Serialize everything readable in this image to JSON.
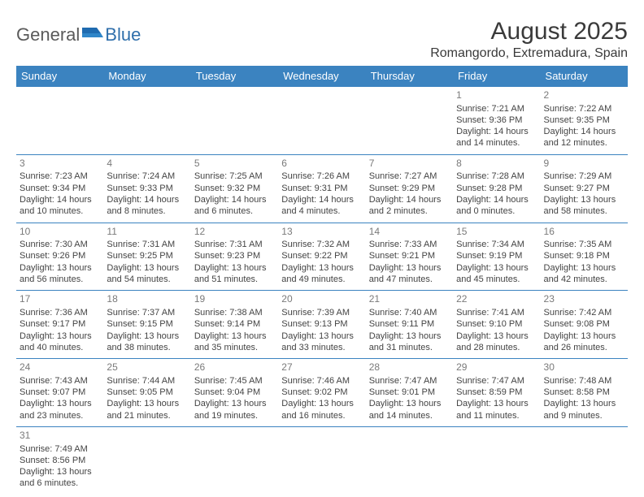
{
  "brand": {
    "part1": "General",
    "part2": "Blue"
  },
  "title": "August 2025",
  "location": "Romangordo, Extremadura, Spain",
  "colors": {
    "header_bg": "#3b83c0",
    "header_text": "#ffffff",
    "border": "#3b83c0",
    "daynum": "#7a7a7a",
    "text": "#444444",
    "title": "#3a3a3a"
  },
  "day_headers": [
    "Sunday",
    "Monday",
    "Tuesday",
    "Wednesday",
    "Thursday",
    "Friday",
    "Saturday"
  ],
  "weeks": [
    [
      null,
      null,
      null,
      null,
      null,
      {
        "n": "1",
        "sr": "Sunrise: 7:21 AM",
        "ss": "Sunset: 9:36 PM",
        "d1": "Daylight: 14 hours",
        "d2": "and 14 minutes."
      },
      {
        "n": "2",
        "sr": "Sunrise: 7:22 AM",
        "ss": "Sunset: 9:35 PM",
        "d1": "Daylight: 14 hours",
        "d2": "and 12 minutes."
      }
    ],
    [
      {
        "n": "3",
        "sr": "Sunrise: 7:23 AM",
        "ss": "Sunset: 9:34 PM",
        "d1": "Daylight: 14 hours",
        "d2": "and 10 minutes."
      },
      {
        "n": "4",
        "sr": "Sunrise: 7:24 AM",
        "ss": "Sunset: 9:33 PM",
        "d1": "Daylight: 14 hours",
        "d2": "and 8 minutes."
      },
      {
        "n": "5",
        "sr": "Sunrise: 7:25 AM",
        "ss": "Sunset: 9:32 PM",
        "d1": "Daylight: 14 hours",
        "d2": "and 6 minutes."
      },
      {
        "n": "6",
        "sr": "Sunrise: 7:26 AM",
        "ss": "Sunset: 9:31 PM",
        "d1": "Daylight: 14 hours",
        "d2": "and 4 minutes."
      },
      {
        "n": "7",
        "sr": "Sunrise: 7:27 AM",
        "ss": "Sunset: 9:29 PM",
        "d1": "Daylight: 14 hours",
        "d2": "and 2 minutes."
      },
      {
        "n": "8",
        "sr": "Sunrise: 7:28 AM",
        "ss": "Sunset: 9:28 PM",
        "d1": "Daylight: 14 hours",
        "d2": "and 0 minutes."
      },
      {
        "n": "9",
        "sr": "Sunrise: 7:29 AM",
        "ss": "Sunset: 9:27 PM",
        "d1": "Daylight: 13 hours",
        "d2": "and 58 minutes."
      }
    ],
    [
      {
        "n": "10",
        "sr": "Sunrise: 7:30 AM",
        "ss": "Sunset: 9:26 PM",
        "d1": "Daylight: 13 hours",
        "d2": "and 56 minutes."
      },
      {
        "n": "11",
        "sr": "Sunrise: 7:31 AM",
        "ss": "Sunset: 9:25 PM",
        "d1": "Daylight: 13 hours",
        "d2": "and 54 minutes."
      },
      {
        "n": "12",
        "sr": "Sunrise: 7:31 AM",
        "ss": "Sunset: 9:23 PM",
        "d1": "Daylight: 13 hours",
        "d2": "and 51 minutes."
      },
      {
        "n": "13",
        "sr": "Sunrise: 7:32 AM",
        "ss": "Sunset: 9:22 PM",
        "d1": "Daylight: 13 hours",
        "d2": "and 49 minutes."
      },
      {
        "n": "14",
        "sr": "Sunrise: 7:33 AM",
        "ss": "Sunset: 9:21 PM",
        "d1": "Daylight: 13 hours",
        "d2": "and 47 minutes."
      },
      {
        "n": "15",
        "sr": "Sunrise: 7:34 AM",
        "ss": "Sunset: 9:19 PM",
        "d1": "Daylight: 13 hours",
        "d2": "and 45 minutes."
      },
      {
        "n": "16",
        "sr": "Sunrise: 7:35 AM",
        "ss": "Sunset: 9:18 PM",
        "d1": "Daylight: 13 hours",
        "d2": "and 42 minutes."
      }
    ],
    [
      {
        "n": "17",
        "sr": "Sunrise: 7:36 AM",
        "ss": "Sunset: 9:17 PM",
        "d1": "Daylight: 13 hours",
        "d2": "and 40 minutes."
      },
      {
        "n": "18",
        "sr": "Sunrise: 7:37 AM",
        "ss": "Sunset: 9:15 PM",
        "d1": "Daylight: 13 hours",
        "d2": "and 38 minutes."
      },
      {
        "n": "19",
        "sr": "Sunrise: 7:38 AM",
        "ss": "Sunset: 9:14 PM",
        "d1": "Daylight: 13 hours",
        "d2": "and 35 minutes."
      },
      {
        "n": "20",
        "sr": "Sunrise: 7:39 AM",
        "ss": "Sunset: 9:13 PM",
        "d1": "Daylight: 13 hours",
        "d2": "and 33 minutes."
      },
      {
        "n": "21",
        "sr": "Sunrise: 7:40 AM",
        "ss": "Sunset: 9:11 PM",
        "d1": "Daylight: 13 hours",
        "d2": "and 31 minutes."
      },
      {
        "n": "22",
        "sr": "Sunrise: 7:41 AM",
        "ss": "Sunset: 9:10 PM",
        "d1": "Daylight: 13 hours",
        "d2": "and 28 minutes."
      },
      {
        "n": "23",
        "sr": "Sunrise: 7:42 AM",
        "ss": "Sunset: 9:08 PM",
        "d1": "Daylight: 13 hours",
        "d2": "and 26 minutes."
      }
    ],
    [
      {
        "n": "24",
        "sr": "Sunrise: 7:43 AM",
        "ss": "Sunset: 9:07 PM",
        "d1": "Daylight: 13 hours",
        "d2": "and 23 minutes."
      },
      {
        "n": "25",
        "sr": "Sunrise: 7:44 AM",
        "ss": "Sunset: 9:05 PM",
        "d1": "Daylight: 13 hours",
        "d2": "and 21 minutes."
      },
      {
        "n": "26",
        "sr": "Sunrise: 7:45 AM",
        "ss": "Sunset: 9:04 PM",
        "d1": "Daylight: 13 hours",
        "d2": "and 19 minutes."
      },
      {
        "n": "27",
        "sr": "Sunrise: 7:46 AM",
        "ss": "Sunset: 9:02 PM",
        "d1": "Daylight: 13 hours",
        "d2": "and 16 minutes."
      },
      {
        "n": "28",
        "sr": "Sunrise: 7:47 AM",
        "ss": "Sunset: 9:01 PM",
        "d1": "Daylight: 13 hours",
        "d2": "and 14 minutes."
      },
      {
        "n": "29",
        "sr": "Sunrise: 7:47 AM",
        "ss": "Sunset: 8:59 PM",
        "d1": "Daylight: 13 hours",
        "d2": "and 11 minutes."
      },
      {
        "n": "30",
        "sr": "Sunrise: 7:48 AM",
        "ss": "Sunset: 8:58 PM",
        "d1": "Daylight: 13 hours",
        "d2": "and 9 minutes."
      }
    ],
    [
      {
        "n": "31",
        "sr": "Sunrise: 7:49 AM",
        "ss": "Sunset: 8:56 PM",
        "d1": "Daylight: 13 hours",
        "d2": "and 6 minutes."
      },
      null,
      null,
      null,
      null,
      null,
      null
    ]
  ]
}
